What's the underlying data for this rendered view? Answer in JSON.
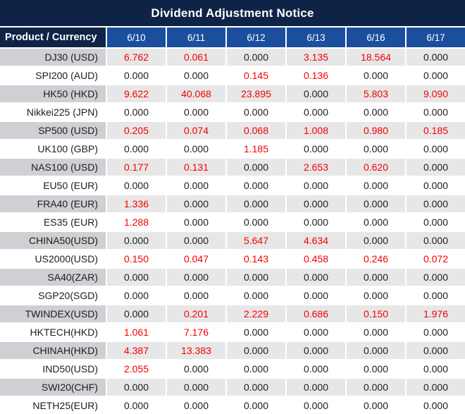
{
  "title": "Dividend Adjustment Notice",
  "colors": {
    "title_bg": "#0e2346",
    "header_bg": "#1b4f9e",
    "stripe_product": "#ced0d4",
    "stripe_value": "#e7e7e8",
    "value_zero": "#1d1d1f",
    "value_nonzero": "#f50000"
  },
  "table": {
    "product_header": "Product / Currency",
    "date_headers": [
      "6/10",
      "6/11",
      "6/12",
      "6/13",
      "6/16",
      "6/17"
    ],
    "rows": [
      {
        "product": "DJ30 (USD)",
        "values": [
          "6.762",
          "0.061",
          "0.000",
          "3.135",
          "18.564",
          "0.000"
        ]
      },
      {
        "product": "SPI200 (AUD)",
        "values": [
          "0.000",
          "0.000",
          "0.145",
          "0.136",
          "0.000",
          "0.000"
        ]
      },
      {
        "product": "HK50 (HKD)",
        "values": [
          "9.622",
          "40.068",
          "23.895",
          "0.000",
          "5.803",
          "9.090"
        ]
      },
      {
        "product": "Nikkei225 (JPN)",
        "values": [
          "0.000",
          "0.000",
          "0.000",
          "0.000",
          "0.000",
          "0.000"
        ]
      },
      {
        "product": "SP500 (USD)",
        "values": [
          "0.205",
          "0.074",
          "0.068",
          "1.008",
          "0.980",
          "0.185"
        ]
      },
      {
        "product": "UK100 (GBP)",
        "values": [
          "0.000",
          "0.000",
          "1.185",
          "0.000",
          "0.000",
          "0.000"
        ]
      },
      {
        "product": "NAS100 (USD)",
        "values": [
          "0.177",
          "0.131",
          "0.000",
          "2.653",
          "0.620",
          "0.000"
        ]
      },
      {
        "product": "EU50 (EUR)",
        "values": [
          "0.000",
          "0.000",
          "0.000",
          "0.000",
          "0.000",
          "0.000"
        ]
      },
      {
        "product": "FRA40 (EUR)",
        "values": [
          "1.336",
          "0.000",
          "0.000",
          "0.000",
          "0.000",
          "0.000"
        ]
      },
      {
        "product": "ES35 (EUR)",
        "values": [
          "1.288",
          "0.000",
          "0.000",
          "0.000",
          "0.000",
          "0.000"
        ]
      },
      {
        "product": "CHINA50(USD)",
        "values": [
          "0.000",
          "0.000",
          "5.647",
          "4.634",
          "0.000",
          "0.000"
        ]
      },
      {
        "product": "US2000(USD)",
        "values": [
          "0.150",
          "0.047",
          "0.143",
          "0.458",
          "0.246",
          "0.072"
        ]
      },
      {
        "product": "SA40(ZAR)",
        "values": [
          "0.000",
          "0.000",
          "0.000",
          "0.000",
          "0.000",
          "0.000"
        ]
      },
      {
        "product": "SGP20(SGD)",
        "values": [
          "0.000",
          "0.000",
          "0.000",
          "0.000",
          "0.000",
          "0.000"
        ]
      },
      {
        "product": "TWINDEX(USD)",
        "values": [
          "0.000",
          "0.201",
          "2.229",
          "0.686",
          "0.150",
          "1.976"
        ]
      },
      {
        "product": "HKTECH(HKD)",
        "values": [
          "1.061",
          "7.176",
          "0.000",
          "0.000",
          "0.000",
          "0.000"
        ]
      },
      {
        "product": "CHINAH(HKD)",
        "values": [
          "4.387",
          "13.383",
          "0.000",
          "0.000",
          "0.000",
          "0.000"
        ]
      },
      {
        "product": "IND50(USD)",
        "values": [
          "2.055",
          "0.000",
          "0.000",
          "0.000",
          "0.000",
          "0.000"
        ]
      },
      {
        "product": "SWI20(CHF)",
        "values": [
          "0.000",
          "0.000",
          "0.000",
          "0.000",
          "0.000",
          "0.000"
        ]
      },
      {
        "product": "NETH25(EUR)",
        "values": [
          "0.000",
          "0.000",
          "0.000",
          "0.000",
          "0.000",
          "0.000"
        ]
      }
    ]
  }
}
